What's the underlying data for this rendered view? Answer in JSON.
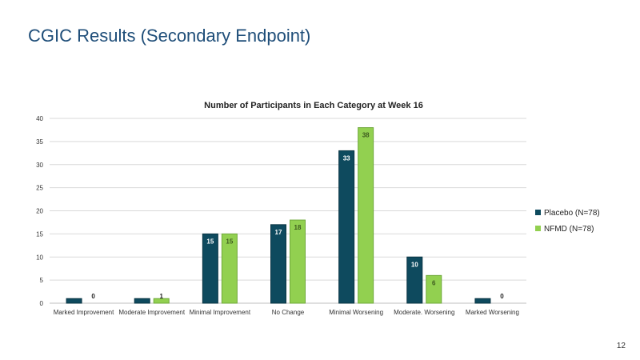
{
  "slide": {
    "title": "CGIC Results (Secondary Endpoint)",
    "page_number": "12"
  },
  "colors": {
    "title": "#1f4e79",
    "placebo": "#0e4a5e",
    "nfmd": "#92d050",
    "grid": "#d9d9d9"
  },
  "chart_data": {
    "type": "bar",
    "title": "Number of Participants in Each Category at Week 16",
    "xlabel": "",
    "ylabel": "",
    "ylim": [
      0,
      40
    ],
    "yticks": [
      0,
      5,
      10,
      15,
      20,
      25,
      30,
      35,
      40
    ],
    "categories": [
      "Marked Improvement",
      "Moderate Improvement",
      "Minimal Improvement",
      "No Change",
      "Minimal Worsening",
      "Moderate. Worsening",
      "Marked Worsening"
    ],
    "series": [
      {
        "name": "Placebo (N=78)",
        "values": [
          1,
          1,
          15,
          17,
          33,
          10,
          1
        ],
        "labels": [
          "",
          "",
          "15",
          "17",
          "33",
          "10",
          ""
        ]
      },
      {
        "name": "NFMD (N=78)",
        "values": [
          0,
          1,
          15,
          18,
          38,
          6,
          0
        ],
        "labels": [
          "0",
          "1",
          "15",
          "18",
          "38",
          "6",
          "0"
        ]
      }
    ],
    "legend_position": "right",
    "grid": true
  }
}
